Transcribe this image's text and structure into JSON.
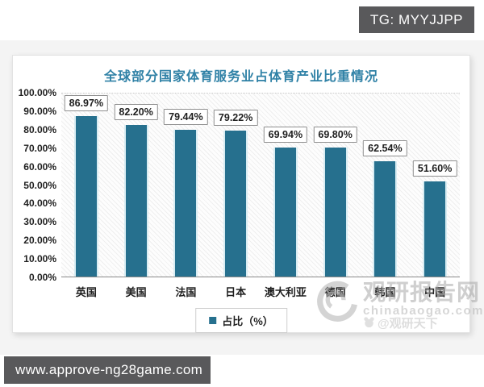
{
  "overlays": {
    "tg_badge": "TG: MYYJJPP",
    "footer_url": "www.approve-ng28game.com"
  },
  "watermark": {
    "site_name": "观研报告网",
    "site_domain": "chinabaogao.com",
    "handle": "@观研天下"
  },
  "chart_data": {
    "type": "bar",
    "title": "全球部分国家体育服务业占体育产业比重情况",
    "categories": [
      "英国",
      "美国",
      "法国",
      "日本",
      "澳大利亚",
      "德国",
      "韩国",
      "中国"
    ],
    "values": [
      86.97,
      82.2,
      79.44,
      79.22,
      69.94,
      69.8,
      62.54,
      51.6
    ],
    "value_labels": [
      "86.97%",
      "82.20%",
      "79.44%",
      "79.22%",
      "69.94%",
      "69.80%",
      "62.54%",
      "51.60%"
    ],
    "legend": "占比（%）",
    "legend_position": "bottom",
    "xlabel": "",
    "ylabel": "",
    "ylim": [
      0,
      100
    ],
    "ytick_labels": [
      "100.00%",
      "90.00%",
      "80.00%",
      "70.00%",
      "60.00%",
      "50.00%",
      "40.00%",
      "30.00%",
      "20.00%",
      "10.00%",
      "0.00%"
    ],
    "grid": "none",
    "bar_color": "#26708e",
    "title_color": "#2f81a6"
  }
}
